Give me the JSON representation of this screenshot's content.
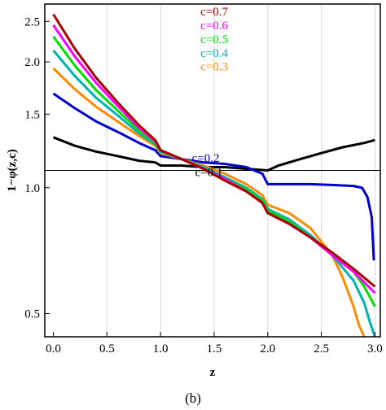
{
  "caption": "(b)",
  "chart_data": {
    "type": "line",
    "xlabel": "z",
    "ylabel": "1−φ(z,c)",
    "xlim": [
      -0.08,
      3.05
    ],
    "ylim": [
      0.44,
      2.75
    ],
    "y_scale": "log",
    "x_ticks": [
      0.0,
      0.5,
      1.0,
      1.5,
      2.0,
      2.5,
      3.0
    ],
    "x_tick_labels": [
      "0.0",
      "0.5",
      "1.0",
      "1.5",
      "2.0",
      "2.5",
      "3.0"
    ],
    "y_ticks": [
      0.5,
      1.0,
      1.5,
      2.0,
      2.5
    ],
    "y_tick_labels": [
      "0.5",
      "1.0",
      "1.5",
      "2.0",
      "2.5"
    ],
    "grid": "vertical",
    "reference_line": 1.1,
    "series": [
      {
        "name": "c=0.1",
        "color": "#000000",
        "label_at": [
          1.55,
          1.09
        ],
        "x": [
          0.0,
          0.2,
          0.4,
          0.6,
          0.8,
          0.95,
          1.0,
          1.2,
          1.4,
          1.6,
          1.8,
          2.0,
          2.1,
          2.3,
          2.5,
          2.7,
          2.9,
          3.0
        ],
        "y": [
          1.32,
          1.26,
          1.22,
          1.19,
          1.16,
          1.15,
          1.13,
          1.13,
          1.12,
          1.12,
          1.11,
          1.1,
          1.13,
          1.17,
          1.21,
          1.25,
          1.28,
          1.3
        ]
      },
      {
        "name": "c=0.2",
        "color": "#0000cc",
        "label_at": [
          1.52,
          1.18
        ],
        "x": [
          0.0,
          0.2,
          0.4,
          0.6,
          0.8,
          0.95,
          1.0,
          1.2,
          1.4,
          1.6,
          1.8,
          1.95,
          2.0,
          2.2,
          2.4,
          2.6,
          2.8,
          2.88,
          2.93,
          2.97,
          2.99
        ],
        "y": [
          1.68,
          1.55,
          1.44,
          1.36,
          1.28,
          1.23,
          1.19,
          1.17,
          1.15,
          1.14,
          1.12,
          1.08,
          1.02,
          1.02,
          1.02,
          1.015,
          1.01,
          1.0,
          0.95,
          0.85,
          0.67
        ]
      },
      {
        "name": "c=0.3",
        "color": "#ff8c00",
        "label_at": [
          1.6,
          1.95
        ],
        "x": [
          0.0,
          0.2,
          0.4,
          0.6,
          0.8,
          0.95,
          1.0,
          1.2,
          1.4,
          1.6,
          1.8,
          1.95,
          2.0,
          2.2,
          2.4,
          2.6,
          2.7,
          2.8,
          2.85,
          2.9
        ],
        "y": [
          1.93,
          1.72,
          1.56,
          1.44,
          1.33,
          1.26,
          1.21,
          1.17,
          1.13,
          1.08,
          1.02,
          0.96,
          0.91,
          0.87,
          0.8,
          0.69,
          0.61,
          0.52,
          0.47,
          0.42
        ]
      },
      {
        "name": "c=0.4",
        "color": "#00b3b3",
        "label_at": [
          1.6,
          2.1
        ],
        "x": [
          0.0,
          0.2,
          0.4,
          0.6,
          0.8,
          0.95,
          1.0,
          1.2,
          1.4,
          1.6,
          1.8,
          1.95,
          2.0,
          2.2,
          2.4,
          2.6,
          2.8,
          2.9,
          2.95,
          3.0
        ],
        "y": [
          2.13,
          1.85,
          1.64,
          1.49,
          1.35,
          1.27,
          1.22,
          1.17,
          1.12,
          1.06,
          1.0,
          0.94,
          0.89,
          0.84,
          0.77,
          0.69,
          0.6,
          0.53,
          0.48,
          0.43
        ]
      },
      {
        "name": "c=0.5",
        "color": "#00e000",
        "label_at": [
          1.6,
          2.27
        ],
        "x": [
          0.0,
          0.2,
          0.4,
          0.6,
          0.8,
          0.95,
          1.0,
          1.2,
          1.4,
          1.6,
          1.8,
          1.95,
          2.0,
          2.2,
          2.4,
          2.6,
          2.8,
          2.9,
          3.0
        ],
        "y": [
          2.3,
          1.96,
          1.71,
          1.53,
          1.37,
          1.28,
          1.23,
          1.17,
          1.11,
          1.05,
          0.99,
          0.93,
          0.88,
          0.83,
          0.76,
          0.69,
          0.63,
          0.58,
          0.52
        ]
      },
      {
        "name": "c=0.6",
        "color": "#ff00ff",
        "label_at": [
          1.6,
          2.45
        ],
        "x": [
          0.0,
          0.2,
          0.4,
          0.6,
          0.8,
          0.95,
          1.0,
          1.2,
          1.4,
          1.6,
          1.8,
          1.95,
          2.0,
          2.2,
          2.4,
          2.6,
          2.8,
          3.0
        ],
        "y": [
          2.45,
          2.06,
          1.78,
          1.57,
          1.39,
          1.29,
          1.23,
          1.17,
          1.11,
          1.05,
          0.98,
          0.92,
          0.87,
          0.82,
          0.76,
          0.69,
          0.63,
          0.56
        ]
      },
      {
        "name": "c=0.7",
        "color": "#aa0000",
        "label_at": [
          1.6,
          2.64
        ],
        "x": [
          0.0,
          0.2,
          0.4,
          0.6,
          0.8,
          0.95,
          1.0,
          1.2,
          1.4,
          1.6,
          1.8,
          1.95,
          2.0,
          2.2,
          2.4,
          2.6,
          2.8,
          3.0
        ],
        "y": [
          2.6,
          2.15,
          1.83,
          1.6,
          1.41,
          1.3,
          1.23,
          1.17,
          1.11,
          1.04,
          0.98,
          0.92,
          0.87,
          0.82,
          0.76,
          0.7,
          0.64,
          0.58
        ]
      }
    ]
  }
}
